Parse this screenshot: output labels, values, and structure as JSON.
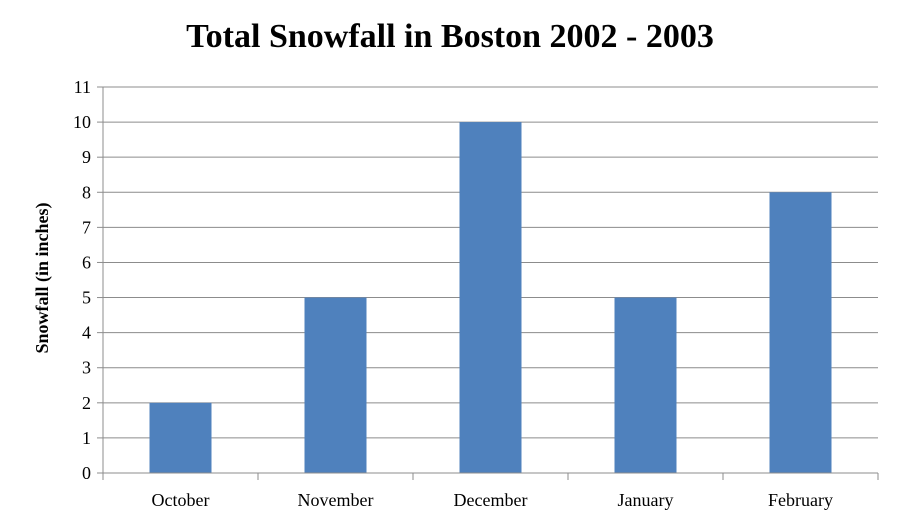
{
  "chart_data": {
    "type": "bar",
    "title": "Total Snowfall in Boston 2002 - 2003",
    "xlabel": "",
    "ylabel": "Snowfall (in inches)",
    "categories": [
      "October",
      "November",
      "December",
      "January",
      "February"
    ],
    "values": [
      2,
      5,
      10,
      5,
      8
    ],
    "ylim": [
      0,
      11
    ],
    "yticks": [
      "0",
      "1",
      "2",
      "3",
      "4",
      "5",
      "6",
      "7",
      "8",
      "9",
      "10",
      "11"
    ],
    "grid": true,
    "legend": "none",
    "bar_color": "#4f81bd",
    "grid_color": "#8c8c8c"
  }
}
